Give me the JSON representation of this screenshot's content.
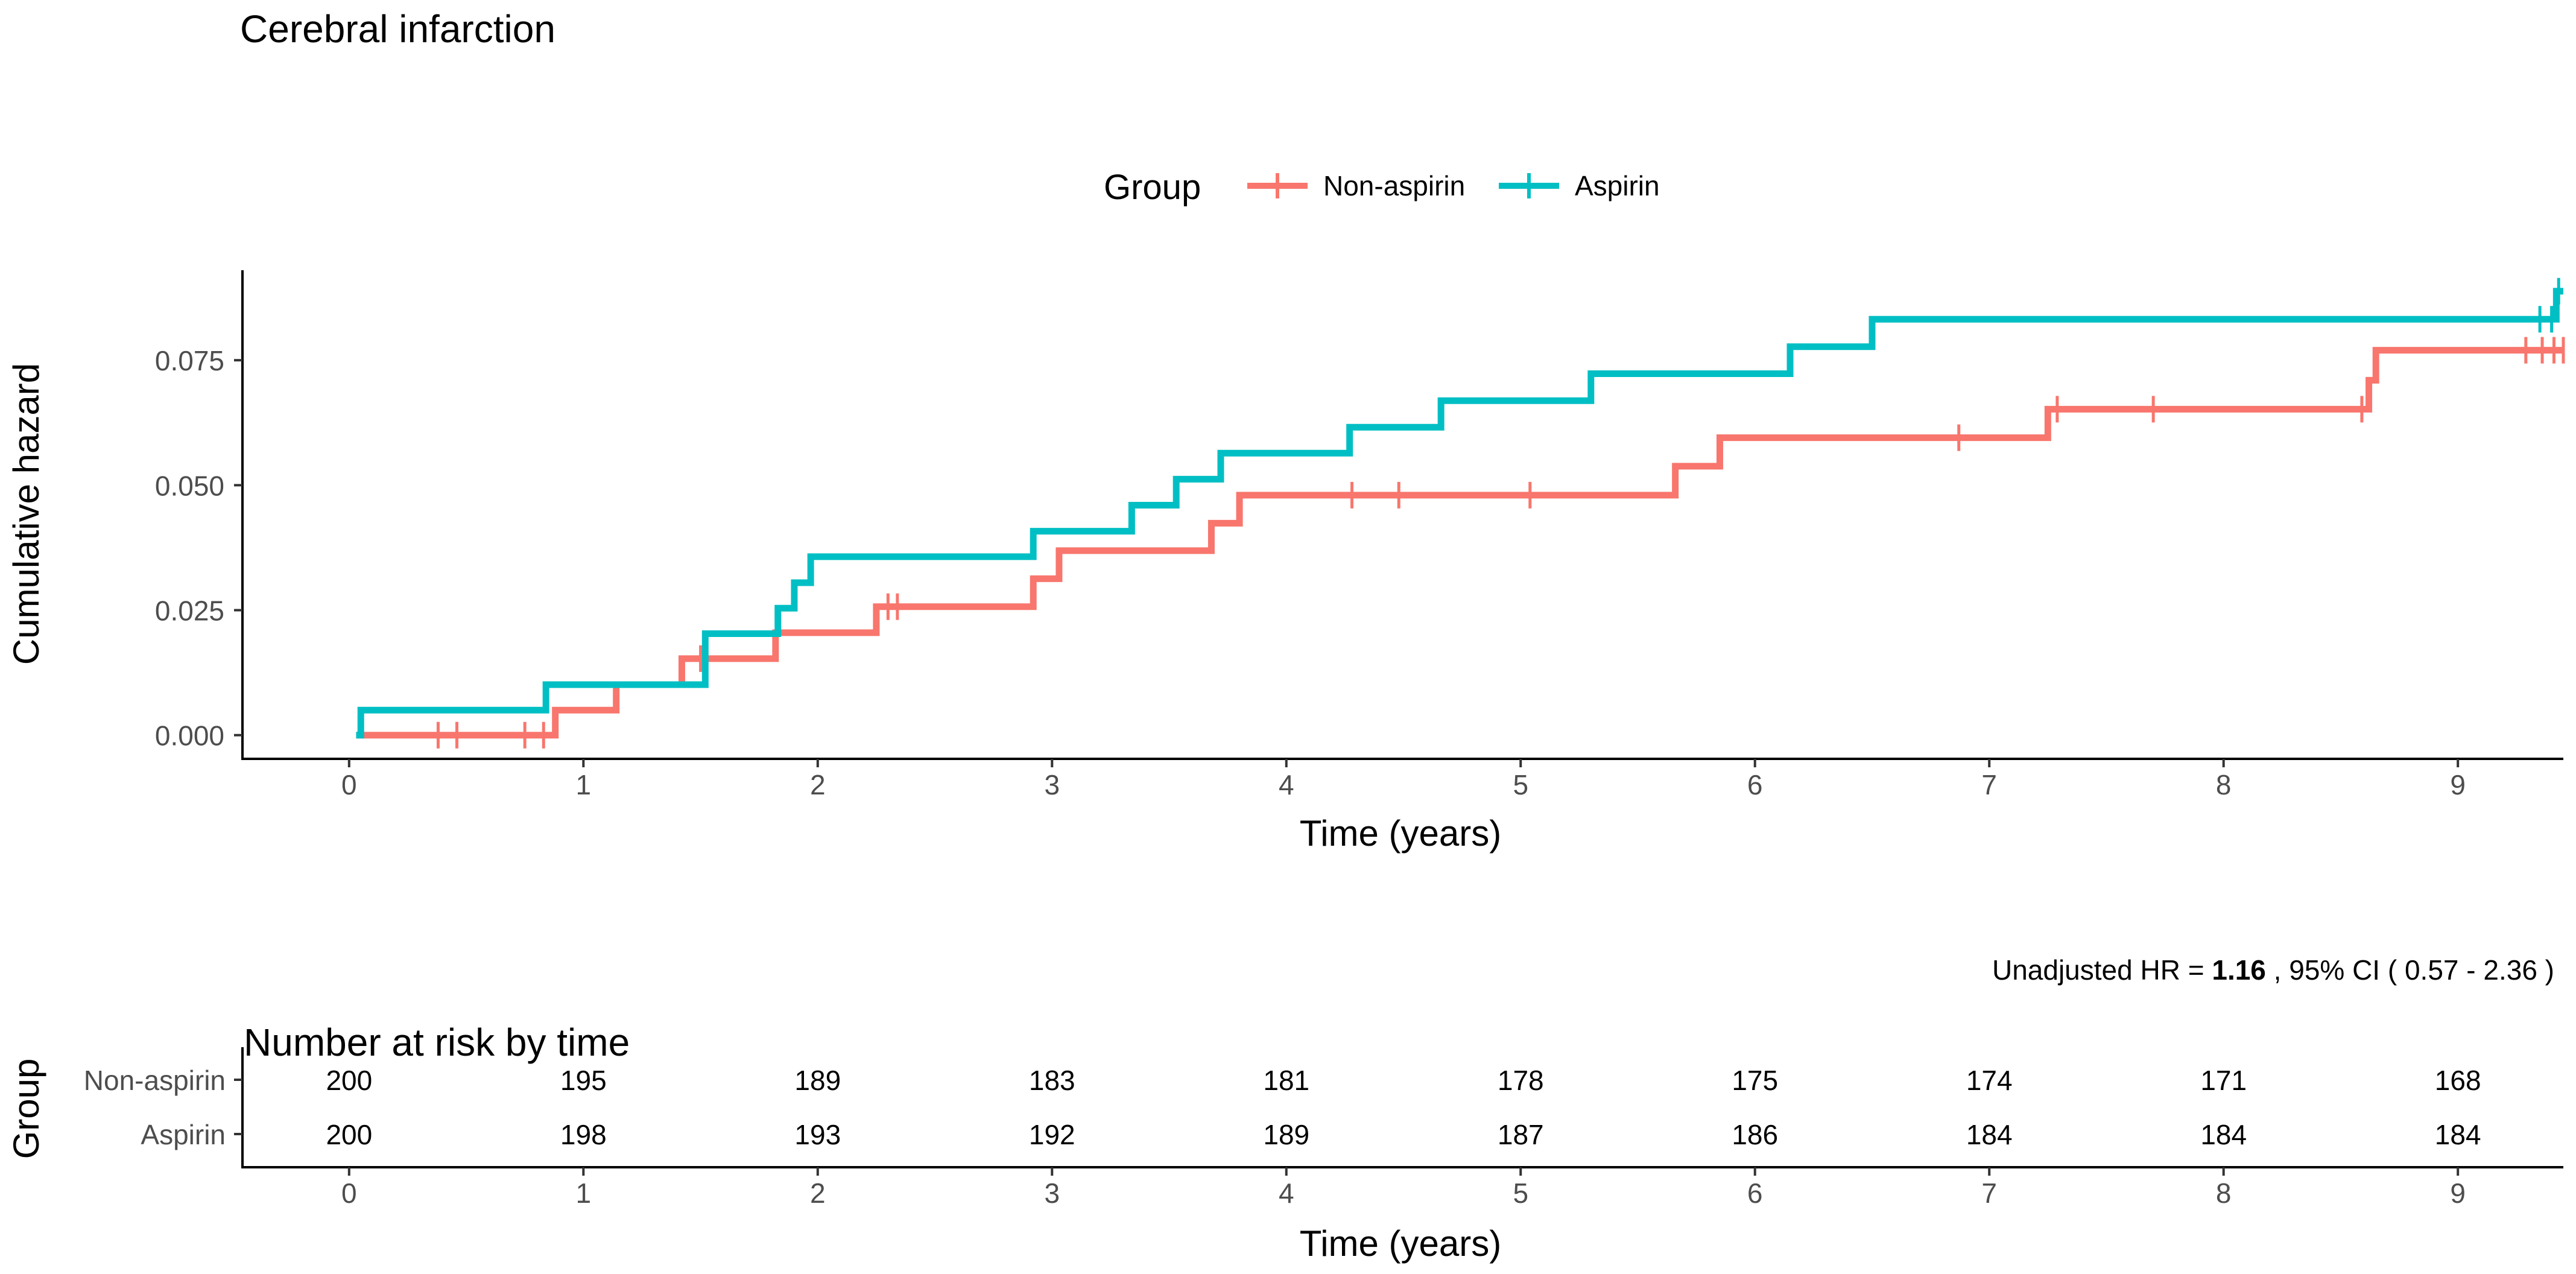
{
  "chart_data": [
    {
      "type": "line",
      "title": "Cerebral infarction",
      "xlabel": "Time (years)",
      "ylabel": "Cumulative hazard",
      "xlim": [
        -0.45,
        9.45
      ],
      "ylim": [
        -0.0045,
        0.093
      ],
      "x_ticks": [
        "0",
        "1",
        "2",
        "3",
        "4",
        "5",
        "6",
        "7",
        "8",
        "9"
      ],
      "y_ticks": [
        "0.000",
        "0.025",
        "0.050",
        "0.075"
      ],
      "grid": false,
      "legend": {
        "title": "Group",
        "position": "top-center"
      },
      "annotation": {
        "prefix": "Unadjusted HR = ",
        "hr": "1.16",
        "suffix": " , 95% CI ( 0.57 - 2.36 )"
      },
      "series": [
        {
          "name": "Non-aspirin",
          "color": "#F8766D",
          "steps": [
            [
              0.03,
              0.0
            ],
            [
              0.88,
              0.005
            ],
            [
              1.14,
              0.0101
            ],
            [
              1.42,
              0.0153
            ],
            [
              1.82,
              0.0205
            ],
            [
              2.25,
              0.0257
            ],
            [
              2.92,
              0.0313
            ],
            [
              3.03,
              0.0369
            ],
            [
              3.68,
              0.0424
            ],
            [
              3.8,
              0.048
            ],
            [
              5.66,
              0.0538
            ],
            [
              5.85,
              0.0595
            ],
            [
              7.25,
              0.0652
            ],
            [
              8.62,
              0.071
            ],
            [
              8.65,
              0.077
            ],
            [
              9.45,
              0.077
            ]
          ],
          "censor_times": [
            0.38,
            0.46,
            0.75,
            0.83,
            1.5,
            2.3,
            2.34,
            4.28,
            4.48,
            5.04,
            6.87,
            7.29,
            7.7,
            8.59,
            9.29,
            9.36,
            9.41,
            9.45
          ]
        },
        {
          "name": "Aspirin",
          "color": "#00BFC4",
          "steps": [
            [
              0.03,
              0.0
            ],
            [
              0.05,
              0.005
            ],
            [
              0.84,
              0.0101
            ],
            [
              1.52,
              0.0203
            ],
            [
              1.83,
              0.0254
            ],
            [
              1.9,
              0.0305
            ],
            [
              1.97,
              0.0357
            ],
            [
              2.92,
              0.0408
            ],
            [
              3.34,
              0.046
            ],
            [
              3.53,
              0.0512
            ],
            [
              3.72,
              0.0564
            ],
            [
              4.27,
              0.0616
            ],
            [
              4.66,
              0.0669
            ],
            [
              5.3,
              0.0723
            ],
            [
              6.15,
              0.0777
            ],
            [
              6.5,
              0.0832
            ],
            [
              9.4,
              0.0832
            ],
            [
              9.42,
              0.0888
            ],
            [
              9.45,
              0.0888
            ]
          ],
          "censor_times": [
            9.35,
            9.4,
            9.43
          ]
        }
      ]
    },
    {
      "type": "table",
      "title": "Number at risk by time",
      "xlabel": "Time (years)",
      "ylabel": "Group",
      "x_ticks": [
        "0",
        "1",
        "2",
        "3",
        "4",
        "5",
        "6",
        "7",
        "8",
        "9"
      ],
      "rows": [
        {
          "name": "Non-aspirin",
          "values": [
            "200",
            "195",
            "189",
            "183",
            "181",
            "178",
            "175",
            "174",
            "171",
            "168"
          ]
        },
        {
          "name": "Aspirin",
          "values": [
            "200",
            "198",
            "193",
            "192",
            "189",
            "187",
            "186",
            "184",
            "184",
            "184"
          ]
        }
      ]
    }
  ]
}
